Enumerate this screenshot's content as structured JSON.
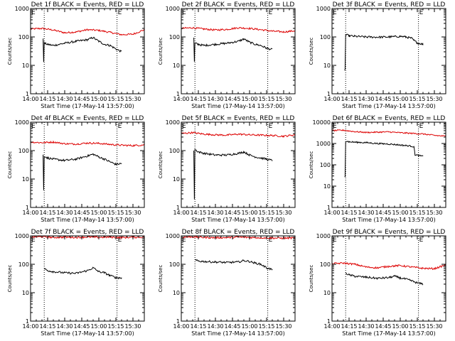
{
  "colors": {
    "events": "#000000",
    "lld": "#dd0000",
    "axis": "#000000"
  },
  "shared": {
    "xlabel": "Start Time (17-May-14 13:57:00)",
    "ylabel": "Counts/sec",
    "xticks": [
      "14:00",
      "14:15",
      "14:30",
      "14:45",
      "15:00",
      "15:15",
      "15:30"
    ],
    "xtick_minutes": [
      0,
      15,
      30,
      45,
      60,
      75,
      90
    ],
    "xlim_minutes": [
      0,
      100
    ],
    "vlines_minutes": [
      12,
      76
    ],
    "e_markers_minutes": [
      0,
      76
    ],
    "e_label": "E",
    "grid": false,
    "y_scale": "log"
  },
  "chart_data": [
    {
      "type": "line",
      "title": "Det 1f BLACK = Events, RED = LLD",
      "ylim": [
        1,
        1000
      ],
      "yticks": [
        "1",
        "10",
        "100",
        "1000"
      ],
      "series": [
        {
          "x": [
            0,
            10,
            20,
            30,
            40,
            50,
            60,
            70,
            80,
            90,
            100
          ],
          "values": [
            190,
            200,
            175,
            140,
            150,
            180,
            170,
            145,
            120,
            125,
            180
          ]
        },
        {
          "x": [
            11,
            11.5,
            12,
            15,
            20,
            30,
            40,
            50,
            55,
            60,
            65,
            70,
            75,
            80
          ],
          "values": [
            90,
            14,
            60,
            55,
            50,
            60,
            70,
            80,
            95,
            70,
            55,
            50,
            38,
            30
          ]
        }
      ]
    },
    {
      "type": "line",
      "title": "Det 2f BLACK = Events, RED = LLD",
      "ylim": [
        1,
        1000
      ],
      "yticks": [
        "1",
        "10",
        "100",
        "1000"
      ],
      "series": [
        {
          "x": [
            0,
            10,
            20,
            30,
            40,
            50,
            60,
            70,
            80,
            90,
            100
          ],
          "values": [
            200,
            210,
            190,
            175,
            185,
            210,
            200,
            180,
            160,
            150,
            165
          ]
        },
        {
          "x": [
            11,
            11.5,
            12,
            15,
            20,
            30,
            40,
            50,
            55,
            60,
            65,
            70,
            75,
            80
          ],
          "values": [
            95,
            13,
            60,
            55,
            50,
            55,
            60,
            70,
            85,
            65,
            55,
            50,
            40,
            36
          ]
        }
      ]
    },
    {
      "type": "line",
      "title": "Det 3f BLACK = Events, RED = LLD",
      "ylim": [
        1,
        1000
      ],
      "yticks": [
        "1",
        "10",
        "100",
        "1000"
      ],
      "series": [
        {
          "x": [
            11,
            11.5,
            12,
            15,
            20,
            30,
            40,
            50,
            60,
            65,
            70,
            72,
            75,
            80
          ],
          "values": [
            7,
            7,
            120,
            110,
            105,
            100,
            98,
            100,
            105,
            100,
            90,
            75,
            62,
            55
          ]
        }
      ]
    },
    {
      "type": "line",
      "title": "Det 4f BLACK = Events, RED = LLD",
      "ylim": [
        1,
        1000
      ],
      "yticks": [
        "1",
        "10",
        "100",
        "1000"
      ],
      "series": [
        {
          "x": [
            0,
            10,
            20,
            30,
            40,
            50,
            60,
            70,
            80,
            90,
            100
          ],
          "values": [
            200,
            190,
            200,
            175,
            170,
            185,
            180,
            165,
            155,
            150,
            160
          ]
        },
        {
          "x": [
            11,
            11.5,
            12,
            15,
            20,
            30,
            40,
            50,
            55,
            60,
            65,
            70,
            75,
            80
          ],
          "values": [
            70,
            4,
            65,
            55,
            50,
            45,
            50,
            65,
            75,
            60,
            50,
            40,
            33,
            35
          ]
        }
      ]
    },
    {
      "type": "line",
      "title": "Det 5f BLACK = Events, RED = LLD",
      "ylim": [
        1,
        1000
      ],
      "yticks": [
        "1",
        "10",
        "100",
        "1000"
      ],
      "series": [
        {
          "x": [
            0,
            10,
            20,
            30,
            40,
            50,
            60,
            70,
            80,
            90,
            100
          ],
          "values": [
            400,
            430,
            380,
            360,
            350,
            380,
            360,
            350,
            340,
            320,
            360
          ]
        },
        {
          "x": [
            11,
            11.5,
            12,
            15,
            20,
            30,
            40,
            50,
            55,
            60,
            65,
            70,
            75,
            80
          ],
          "values": [
            105,
            2,
            110,
            90,
            80,
            70,
            70,
            80,
            90,
            70,
            60,
            55,
            50,
            45
          ]
        }
      ]
    },
    {
      "type": "line",
      "title": "Det 6f BLACK = Events, RED = LLD",
      "ylim": [
        1,
        10000
      ],
      "yticks": [
        "1",
        "10",
        "100",
        "1000",
        "10000"
      ],
      "series": [
        {
          "x": [
            0,
            10,
            20,
            30,
            40,
            50,
            60,
            70,
            80,
            90,
            100
          ],
          "values": [
            4000,
            4200,
            3600,
            3300,
            3400,
            3500,
            3200,
            3000,
            2800,
            2400,
            2200
          ]
        },
        {
          "x": [
            11,
            11.5,
            12,
            15,
            20,
            30,
            40,
            50,
            60,
            65,
            70,
            72,
            73,
            75,
            80
          ],
          "values": [
            30,
            30,
            1300,
            1200,
            1150,
            1100,
            1000,
            950,
            850,
            800,
            750,
            700,
            300,
            280,
            250
          ]
        }
      ]
    },
    {
      "type": "line",
      "title": "Det 7f BLACK = Events, RED = LLD",
      "ylim": [
        1,
        1000
      ],
      "yticks": [
        "1",
        "10",
        "100",
        "1000"
      ],
      "series": [
        {
          "x": [
            0,
            10,
            20,
            30,
            40,
            50,
            60,
            70,
            80,
            90,
            100
          ],
          "values": [
            900,
            930,
            880,
            900,
            880,
            910,
            890,
            900,
            870,
            890,
            900
          ]
        },
        {
          "x": [
            12,
            15,
            20,
            30,
            40,
            50,
            55,
            60,
            65,
            70,
            75,
            80
          ],
          "values": [
            70,
            60,
            55,
            50,
            48,
            60,
            75,
            55,
            50,
            40,
            34,
            33
          ]
        }
      ]
    },
    {
      "type": "line",
      "title": "Det 8f BLACK = Events, RED = LLD",
      "ylim": [
        1,
        1000
      ],
      "yticks": [
        "1",
        "10",
        "100",
        "1000"
      ],
      "series": [
        {
          "x": [
            0,
            10,
            20,
            30,
            40,
            50,
            60,
            70,
            80,
            90,
            100
          ],
          "values": [
            900,
            920,
            880,
            860,
            870,
            900,
            880,
            860,
            840,
            830,
            850
          ]
        },
        {
          "x": [
            12,
            15,
            20,
            30,
            40,
            50,
            55,
            60,
            65,
            70,
            75,
            80
          ],
          "values": [
            140,
            130,
            125,
            120,
            115,
            120,
            135,
            125,
            110,
            100,
            75,
            65
          ]
        }
      ]
    },
    {
      "type": "line",
      "title": "Det 9f BLACK = Events, RED = LLD",
      "ylim": [
        1,
        1000
      ],
      "yticks": [
        "1",
        "10",
        "100",
        "1000"
      ],
      "series": [
        {
          "x": [
            0,
            10,
            20,
            30,
            40,
            50,
            60,
            70,
            80,
            90,
            100
          ],
          "values": [
            105,
            110,
            100,
            80,
            75,
            85,
            90,
            80,
            72,
            70,
            95
          ]
        },
        {
          "x": [
            12,
            15,
            20,
            30,
            40,
            50,
            55,
            60,
            65,
            70,
            75,
            80
          ],
          "values": [
            50,
            42,
            38,
            35,
            32,
            34,
            38,
            33,
            30,
            26,
            22,
            20
          ]
        }
      ]
    }
  ]
}
